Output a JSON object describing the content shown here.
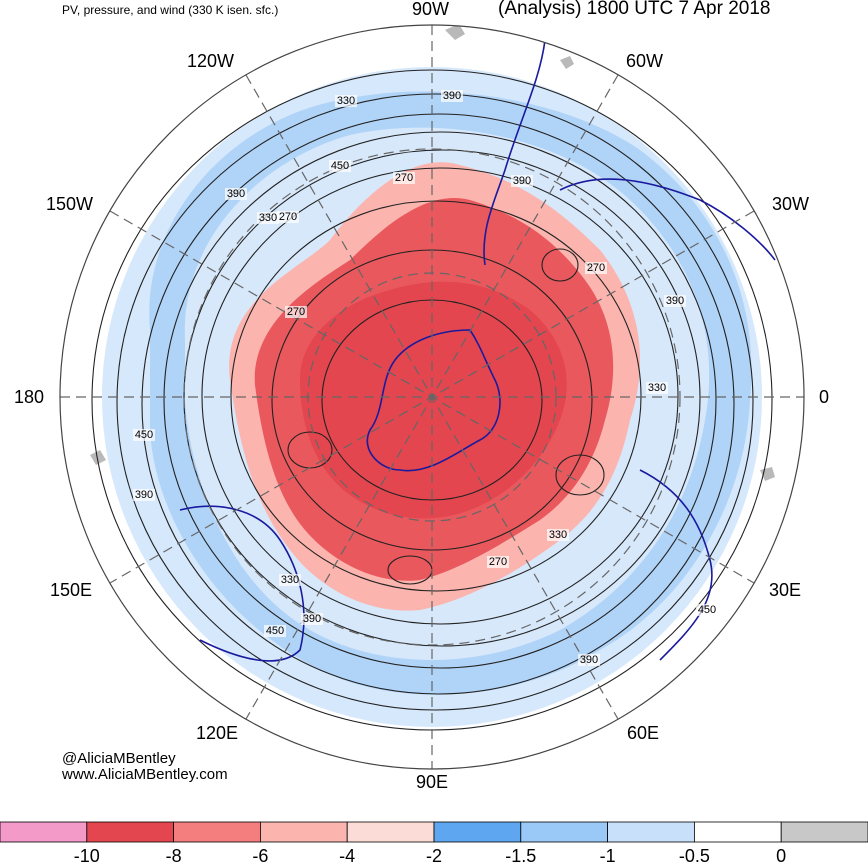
{
  "header": {
    "left_title": "PV, pressure, and wind (330 K isen. sfc.)",
    "right_title": "(Analysis) 1800 UTC 7 Apr 2018"
  },
  "longitude_labels": {
    "lon_90W": "90W",
    "lon_120W": "120W",
    "lon_60W": "60W",
    "lon_150W": "150W",
    "lon_30W": "30W",
    "lon_180": "180",
    "lon_0": "0",
    "lon_150E": "150E",
    "lon_30E": "30E",
    "lon_120E": "120E",
    "lon_60E": "60E",
    "lon_90E": "90E"
  },
  "contour_labels": [
    "330",
    "390",
    "450",
    "270",
    "330",
    "390",
    "270",
    "390",
    "330",
    "270",
    "390",
    "450",
    "330",
    "270",
    "390",
    "450",
    "330",
    "270",
    "390",
    "450",
    "390"
  ],
  "credits": {
    "handle": "@AliciaMBentley",
    "website": "www.AliciaMBentley.com"
  },
  "colorbar": {
    "colors": [
      "#f49ac8",
      "#e3464e",
      "#f47d7d",
      "#fbb4ae",
      "#fcdcd6",
      "#5fa6f0",
      "#9ac8f7",
      "#c8e0fa",
      "#ffffff",
      "#c8c8c8"
    ],
    "tick_labels": [
      "-10",
      "-8",
      "-6",
      "-4",
      "-2",
      "-1.5",
      "-1",
      "-0.5",
      "0"
    ]
  },
  "colors": {
    "coastline": "#1a1a9e",
    "contour": "#222222",
    "graticule": "#666666"
  }
}
